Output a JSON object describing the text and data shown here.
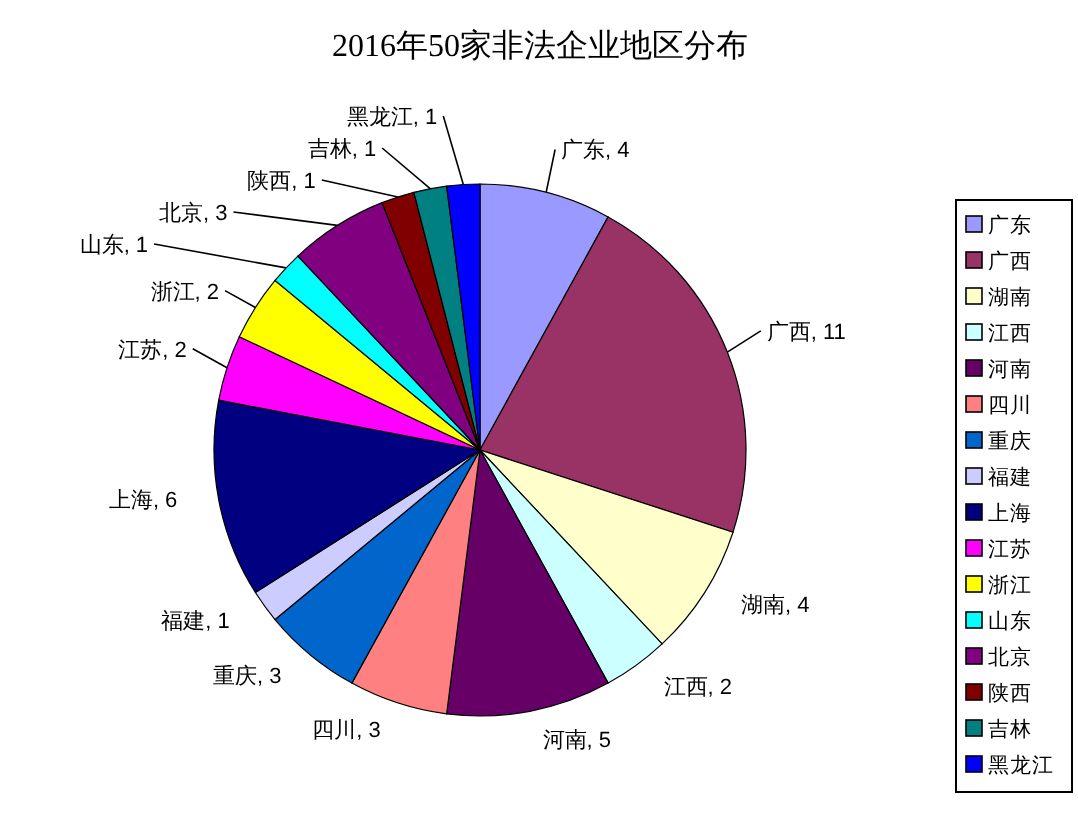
{
  "chart_data": {
    "type": "pie",
    "title": "2016年50家非法企业地区分布",
    "categories": [
      "广东",
      "广西",
      "湖南",
      "江西",
      "河南",
      "四川",
      "重庆",
      "福建",
      "上海",
      "江苏",
      "浙江",
      "山东",
      "北京",
      "陕西",
      "吉林",
      "黑龙江"
    ],
    "values": [
      4,
      11,
      4,
      2,
      5,
      3,
      3,
      1,
      6,
      2,
      2,
      1,
      3,
      1,
      1,
      1
    ],
    "colors": [
      "#9999ff",
      "#993366",
      "#ffffcc",
      "#ccffff",
      "#660066",
      "#ff8080",
      "#0066cc",
      "#ccccff",
      "#000080",
      "#ff00ff",
      "#ffff00",
      "#00ffff",
      "#800080",
      "#800000",
      "#008080",
      "#0000ff"
    ],
    "value_labels": [
      "广东, 4",
      "广西, 11",
      "湖南, 4",
      "江西, 2",
      "河南, 5",
      "四川, 3",
      "重庆, 3",
      "福建, 1",
      "上海, 6",
      "江苏, 2",
      "浙江, 2",
      "山东, 1",
      "北京, 3",
      "陕西, 1",
      "吉林, 1",
      "黑龙江, 1"
    ],
    "legend": "right"
  }
}
